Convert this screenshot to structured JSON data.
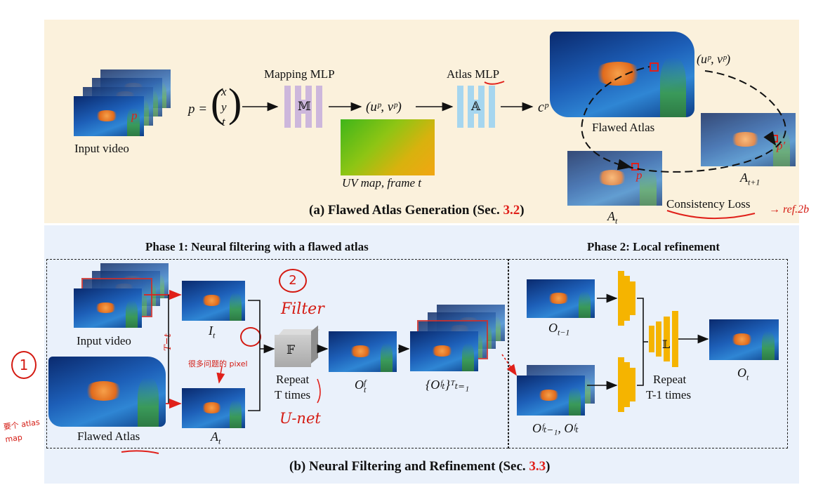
{
  "panel_a": {
    "caption_prefix": "(a) Flawed Atlas Generation (Sec. ",
    "caption_ref": "3.2",
    "caption_suffix": ")",
    "input_video_label": "Input video",
    "p_marker": "p",
    "p_equation": "p =",
    "p_vector": [
      "x",
      "y",
      "t"
    ],
    "mapping_mlp_title": "Mapping MLP",
    "mapping_mlp_symbol": "𝕄",
    "uv_output": "(uᵖ, vᵖ)",
    "uv_map_caption": "UV map, frame t",
    "atlas_mlp_title_prefix": "Atlas ",
    "atlas_mlp_title_underlined": "MLP",
    "atlas_mlp_symbol": "𝔸",
    "color_output": "cᵖ",
    "flawed_atlas_label": "Flawed Atlas",
    "atlas_uv_label": "(uᵖ, vᵖ)",
    "frame_t_label": "A",
    "frame_t_sub": "t",
    "frame_t1_label": "A",
    "frame_t1_sub": "t+1",
    "p_prime_marker": "p′",
    "consistency_loss_label": "Consistency Loss",
    "handwritten_ref": "→ ref.2b"
  },
  "panel_b": {
    "caption_prefix": "(b) Neural Filtering and Refinement (Sec. ",
    "caption_ref": "3.3",
    "caption_suffix": ")",
    "phase1_title": "Phase 1: Neural filtering with a flawed atlas",
    "phase2_title": "Phase 2: Local refinement",
    "input_video_label": "Input video",
    "flawed_atlas_label": "Flawed Atlas",
    "it_label": "I",
    "it_sub": "t",
    "at_label": "A",
    "at_sub": "t",
    "filter_symbol": "𝔽",
    "repeat_label": "Repeat",
    "repeat_times": "T times",
    "otf_label": "O",
    "otf_sup": "f",
    "otf_sub": "t",
    "otf_set_label": "{Oᶠₜ}ᵀₜ₌₁",
    "ot_prev_label": "O",
    "ot_prev_sub": "t−1",
    "ot_pair_label": "Oᶠₜ₋₁, Oᶠₜ",
    "refine_symbol": "𝕃",
    "repeat2_label": "Repeat",
    "repeat2_times": "T-1 times",
    "ot_label": "O",
    "ot_sub": "t"
  },
  "handwritten": {
    "circle_1": "1",
    "circle_2": "2",
    "filter_note": "Filter",
    "unet_note": "U-net",
    "t_eq_note": "T=t",
    "pixel_note": "很多问题的 pixel",
    "atlas_map_note": "要个 atlas map"
  },
  "colors": {
    "panel_a_bg": "#fbf1dc",
    "panel_b_bg": "#eaf1fb",
    "mapping_mlp": "#cdb7dc",
    "atlas_mlp": "#a6d6ef",
    "refine_net": "#f5b400",
    "highlight_red": "#e0201a",
    "annotation_red": "#d41a12"
  }
}
